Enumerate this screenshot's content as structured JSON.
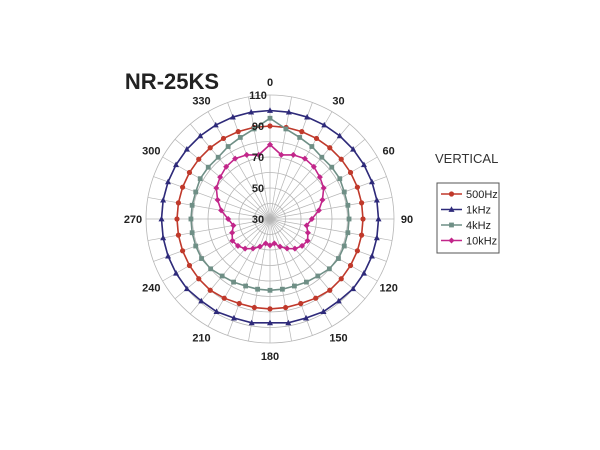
{
  "chart_data": {
    "type": "polar-line",
    "title": "NR-25KS",
    "subtitle": "VERTICAL",
    "angle_unit": "degrees",
    "angle_ticks": [
      0,
      30,
      60,
      90,
      120,
      150,
      180,
      210,
      240,
      270,
      300,
      330
    ],
    "angle_step_minor": 10,
    "radial_range": [
      30,
      110
    ],
    "radial_ticks": [
      30,
      50,
      70,
      90,
      110
    ],
    "radial_grid_step": 10,
    "grid": true,
    "legend": "right",
    "series": [
      {
        "name": "500Hz",
        "color": "#c0392b",
        "marker": "circle",
        "angles": [
          0,
          10,
          20,
          30,
          40,
          50,
          60,
          70,
          80,
          90,
          100,
          110,
          120,
          130,
          140,
          150,
          160,
          170,
          180,
          190,
          200,
          210,
          220,
          230,
          240,
          250,
          260,
          270,
          280,
          290,
          300,
          310,
          320,
          330,
          340,
          350
        ],
        "values": [
          90,
          90,
          90,
          90,
          90,
          90,
          90,
          90,
          90,
          90,
          90,
          90,
          90,
          90,
          90,
          89,
          88,
          88,
          88,
          88,
          88,
          89,
          90,
          90,
          90,
          90,
          90,
          90,
          90,
          90,
          90,
          90,
          90,
          90,
          90,
          90
        ]
      },
      {
        "name": "1kHz",
        "color": "#2e2a7a",
        "marker": "triangle",
        "angles": [
          0,
          10,
          20,
          30,
          40,
          50,
          60,
          70,
          80,
          90,
          100,
          110,
          120,
          130,
          140,
          150,
          160,
          170,
          180,
          190,
          200,
          210,
          220,
          230,
          240,
          250,
          260,
          270,
          280,
          290,
          300,
          310,
          320,
          330,
          340,
          350
        ],
        "values": [
          100,
          100,
          100,
          100,
          100,
          100,
          100,
          100,
          100,
          100,
          100,
          100,
          100,
          100,
          99,
          99,
          98,
          98,
          97,
          98,
          98,
          99,
          99,
          100,
          100,
          100,
          100,
          100,
          100,
          100,
          100,
          100,
          100,
          100,
          100,
          100
        ]
      },
      {
        "name": "4kHz",
        "color": "#6f8f86",
        "marker": "square",
        "angles": [
          0,
          10,
          20,
          30,
          40,
          50,
          60,
          70,
          80,
          90,
          100,
          110,
          120,
          130,
          140,
          150,
          160,
          170,
          180,
          190,
          200,
          210,
          220,
          230,
          240,
          250,
          260,
          270,
          280,
          290,
          300,
          310,
          320,
          330,
          340,
          350
        ],
        "values": [
          95,
          89,
          86,
          84,
          82,
          82,
          82,
          81,
          81,
          81,
          81,
          81,
          81,
          80,
          78,
          77,
          76,
          76,
          76,
          76,
          76,
          77,
          78,
          80,
          81,
          81,
          81,
          81,
          81,
          81,
          82,
          82,
          82,
          84,
          86,
          89
        ]
      },
      {
        "name": "10kHz",
        "color": "#c2268a",
        "marker": "diamond",
        "angles": [
          0,
          10,
          20,
          30,
          40,
          50,
          60,
          70,
          80,
          90,
          100,
          110,
          120,
          130,
          140,
          150,
          160,
          170,
          180,
          190,
          200,
          210,
          220,
          230,
          240,
          250,
          260,
          270,
          280,
          290,
          300,
          310,
          320,
          330,
          340,
          350
        ],
        "values": [
          78,
          72,
          74,
          75,
          74,
          72,
          70,
          66,
          62,
          57,
          54,
          56,
          58,
          57,
          55,
          52,
          49,
          46,
          47,
          46,
          49,
          52,
          55,
          57,
          58,
          56,
          54,
          57,
          62,
          66,
          70,
          72,
          74,
          75,
          74,
          72
        ]
      }
    ]
  }
}
